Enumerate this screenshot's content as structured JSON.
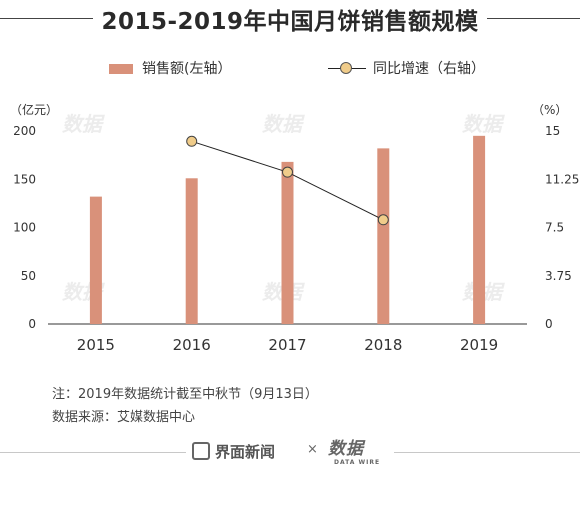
{
  "chart_data": {
    "type": "bar",
    "title": "2015-2019年中国月饼销售额规模",
    "categories": [
      "2015",
      "2016",
      "2017",
      "2018",
      "2019"
    ],
    "series": [
      {
        "name": "销售额(左轴）",
        "type": "bar",
        "axis": "left",
        "color": "#d9917a",
        "values": [
          132,
          151,
          168,
          182,
          195
        ]
      },
      {
        "name": "同比增速（右轴）",
        "type": "line",
        "axis": "right",
        "color": "#222222",
        "marker_color": "#f0cc8a",
        "values": [
          null,
          14.2,
          11.8,
          8.1,
          null
        ]
      }
    ],
    "left_axis": {
      "unit": "（亿元）",
      "ylim": [
        0,
        200
      ],
      "ticks": [
        "0",
        "50",
        "100",
        "150",
        "200"
      ]
    },
    "right_axis": {
      "unit": "（%）",
      "ylim": [
        0,
        15
      ],
      "ticks": [
        "0",
        "3.75",
        "7.5",
        "11.25",
        "15"
      ]
    },
    "grid": false,
    "legend": "top"
  },
  "notes": {
    "note": "注：2019年数据统计截至中秋节（9月13日）",
    "source": "数据来源：艾媒数据中心"
  },
  "footer": {
    "brand": "界面新闻",
    "times": "×",
    "logo_zh": "数据",
    "logo_en": "DATA WIRE"
  }
}
